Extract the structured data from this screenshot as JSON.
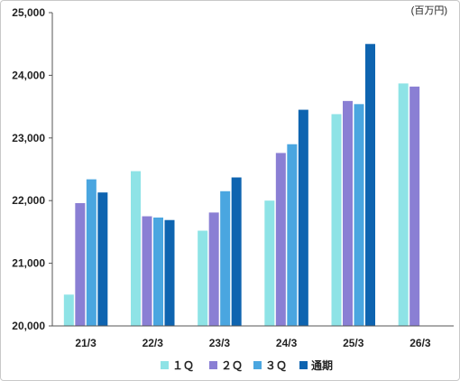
{
  "chart_data": {
    "type": "bar",
    "unit_label": "(百万円)",
    "categories": [
      "21/3",
      "22/3",
      "23/3",
      "24/3",
      "25/3",
      "26/3"
    ],
    "ylim": [
      20000,
      25000
    ],
    "yticks": [
      "20,000",
      "21,000",
      "22,000",
      "23,000",
      "24,000",
      "25,000"
    ],
    "ytick_values": [
      20000,
      21000,
      22000,
      23000,
      24000,
      25000
    ],
    "grid": false,
    "legend_position": "bottom",
    "series": [
      {
        "name": "１Ｑ",
        "color": "#8ee3e6",
        "values": [
          20500,
          22470,
          21520,
          22000,
          23380,
          23870
        ]
      },
      {
        "name": "２Ｑ",
        "color": "#8a7fd4",
        "values": [
          21960,
          21750,
          21810,
          22760,
          23590,
          23820
        ]
      },
      {
        "name": "３Ｑ",
        "color": "#4aa6e0",
        "values": [
          22340,
          21730,
          22150,
          22900,
          23540,
          null
        ]
      },
      {
        "name": "通期",
        "color": "#0e64b0",
        "values": [
          22130,
          21690,
          22370,
          23450,
          24500,
          null
        ]
      }
    ]
  }
}
